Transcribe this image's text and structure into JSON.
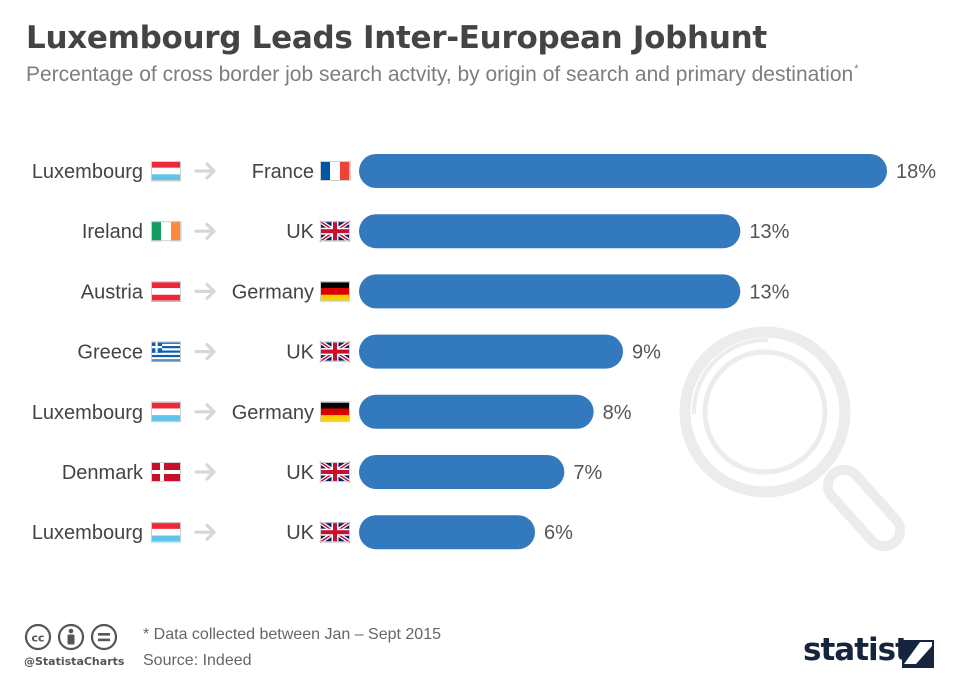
{
  "header": {
    "title": "Luxembourg Leads Inter-European Jobhunt",
    "subtitle": "Percentage of cross border job search actvity, by origin of search and primary destination",
    "subtitle_mark": "*"
  },
  "chart_data": {
    "type": "bar",
    "orientation": "horizontal",
    "title": "Luxembourg Leads Inter-European Jobhunt",
    "subtitle": "Percentage of cross border job search actvity, by origin of search and primary destination*",
    "unit": "%",
    "xlim": [
      0,
      18
    ],
    "grid": false,
    "rows": [
      {
        "origin": "Luxembourg",
        "origin_flag": "lu",
        "destination": "France",
        "destination_flag": "fr",
        "value": 18,
        "label": "18%"
      },
      {
        "origin": "Ireland",
        "origin_flag": "ie",
        "destination": "UK",
        "destination_flag": "uk",
        "value": 13,
        "label": "13%"
      },
      {
        "origin": "Austria",
        "origin_flag": "at",
        "destination": "Germany",
        "destination_flag": "de",
        "value": 13,
        "label": "13%"
      },
      {
        "origin": "Greece",
        "origin_flag": "gr",
        "destination": "UK",
        "destination_flag": "uk",
        "value": 9,
        "label": "9%"
      },
      {
        "origin": "Luxembourg",
        "origin_flag": "lu",
        "destination": "Germany",
        "destination_flag": "de",
        "value": 8,
        "label": "8%"
      },
      {
        "origin": "Denmark",
        "origin_flag": "dk",
        "destination": "UK",
        "destination_flag": "uk",
        "value": 7,
        "label": "7%"
      },
      {
        "origin": "Luxembourg",
        "origin_flag": "lu",
        "destination": "UK",
        "destination_flag": "uk",
        "value": 6,
        "label": "6%"
      }
    ]
  },
  "colors": {
    "bar": "#3279be",
    "text": "#444444",
    "arrow": "#d7d7d7",
    "watermark": "#ececec"
  },
  "icons": {
    "watermark": "magnifier-icon",
    "arrow": "arrow-right-icon",
    "license": [
      "cc-icon",
      "by-icon",
      "nd-icon"
    ]
  },
  "footer": {
    "note": "* Data collected between Jan – Sept 2015",
    "source": "Source: Indeed",
    "handle": "@StatistaCharts",
    "brand": "statista"
  }
}
